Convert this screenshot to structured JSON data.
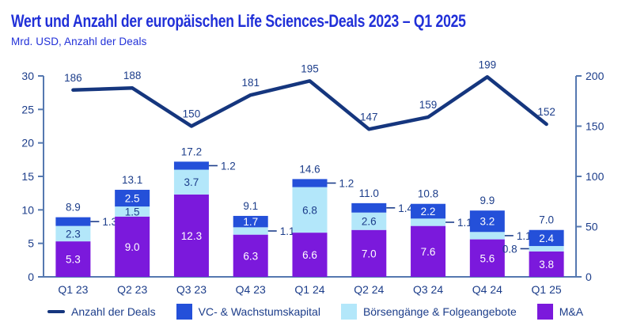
{
  "header": {
    "title": "Wert und Anzahl der europäischen Life Sciences-Deals 2023 – Q1 2025",
    "subtitle": "Mrd. USD, Anzahl der Deals"
  },
  "colors": {
    "title": "#2130d8",
    "text": "#1c3d8a",
    "line": "#15367e",
    "axis": "#5578b0",
    "white_label": "#ffffff"
  },
  "chart_data": {
    "type": "bar",
    "subtype": "stacked-bar-with-line",
    "title": "Wert und Anzahl der europäischen Life Sciences-Deals 2023 – Q1 2025",
    "subtitle": "Mrd. USD, Anzahl der Deals",
    "categories": [
      "Q1 23",
      "Q2 23",
      "Q3 23",
      "Q4 23",
      "Q1 24",
      "Q2 24",
      "Q3 24",
      "Q4 24",
      "Q1 25"
    ],
    "series": [
      {
        "name": "M&A",
        "color": "#7b19dc",
        "text_color": "#ffffff",
        "values": [
          5.3,
          9.0,
          12.3,
          6.3,
          6.6,
          7.0,
          7.6,
          5.6,
          3.8
        ],
        "label_pos": [
          "in",
          "in",
          "in",
          "in",
          "in",
          "in",
          "in",
          "in",
          "in"
        ]
      },
      {
        "name": "Börsengänge & Folgeangebote",
        "color": "#b3e7fa",
        "text_color": "#1c3d8a",
        "values": [
          2.3,
          1.5,
          3.7,
          1.1,
          6.8,
          2.6,
          1.1,
          1.1,
          0.8
        ],
        "label_pos": [
          "in",
          "in",
          "in",
          "right",
          "in",
          "in",
          "right",
          "right",
          "left"
        ]
      },
      {
        "name": "VC- & Wachstumskapital",
        "color": "#2450d9",
        "text_color": "#ffffff",
        "values": [
          1.3,
          2.5,
          1.2,
          1.7,
          1.2,
          1.4,
          2.2,
          3.2,
          2.4
        ],
        "label_pos": [
          "right",
          "in",
          "right",
          "in",
          "right",
          "right",
          "in",
          "in",
          "in"
        ]
      }
    ],
    "totals": [
      "8.9",
      "13.1",
      "17.2",
      "9.1",
      "14.6",
      "11.0",
      "10.8",
      "9.9",
      "7.0"
    ],
    "line_series": {
      "name": "Anzahl der Deals",
      "color": "#15367e",
      "values": [
        186,
        188,
        150,
        181,
        195,
        147,
        159,
        199,
        152
      ]
    },
    "left_axis": {
      "ticks": [
        0,
        5,
        10,
        15,
        20,
        25,
        30
      ],
      "max": 30
    },
    "right_axis": {
      "ticks": [
        0,
        50,
        100,
        150,
        200
      ],
      "max": 200
    },
    "grid": false,
    "legend_position": "bottom",
    "legend": [
      {
        "swatch": "line",
        "color": "#15367e",
        "label": "Anzahl der Deals"
      },
      {
        "swatch": "square",
        "color": "#2450d9",
        "label": "VC- & Wachstumskapital"
      },
      {
        "swatch": "square",
        "color": "#b3e7fa",
        "label": "Börsengänge & Folgeangebote"
      },
      {
        "swatch": "square",
        "color": "#7b19dc",
        "label": "M&A"
      }
    ]
  }
}
